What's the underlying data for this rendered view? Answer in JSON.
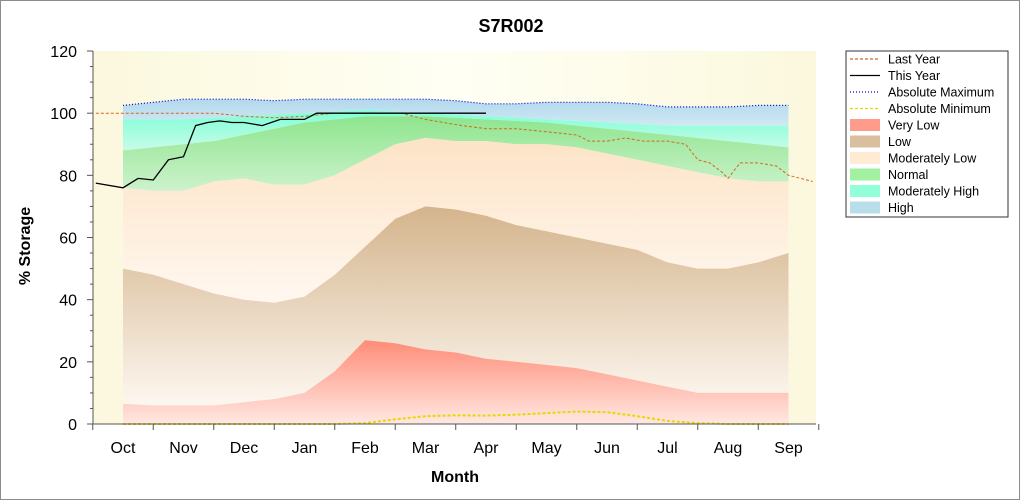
{
  "chart_data": {
    "type": "area",
    "title": "S7R002",
    "xlabel": "Month",
    "ylabel": "% Storage",
    "ylim": [
      0,
      120
    ],
    "yticks": [
      0,
      20,
      40,
      60,
      80,
      100,
      120
    ],
    "categories": [
      "Oct",
      "Nov",
      "Dec",
      "Jan",
      "Feb",
      "Mar",
      "Apr",
      "May",
      "Jun",
      "Jul",
      "Aug",
      "Sep"
    ],
    "grid": false,
    "legend_position": "right",
    "band_boundaries": {
      "x": [
        0,
        0.5,
        1,
        1.5,
        2,
        2.5,
        3,
        3.5,
        4,
        4.5,
        5,
        5.5,
        6,
        6.5,
        7,
        7.5,
        8,
        8.5,
        9,
        9.5,
        10,
        10.5,
        11
      ],
      "very_low_top": [
        6.5,
        6,
        6,
        6,
        7,
        8,
        10,
        17,
        27,
        26,
        24,
        23,
        21,
        20,
        19,
        18,
        16,
        14,
        12,
        10,
        10,
        10,
        10
      ],
      "low_top": [
        50,
        48,
        45,
        42,
        40,
        39,
        41,
        48,
        57,
        66,
        70,
        69,
        67,
        64,
        62,
        60,
        58,
        56,
        52,
        50,
        50,
        52,
        55
      ],
      "moderately_low_top": [
        76,
        75,
        75,
        78,
        79,
        77,
        77,
        80,
        85,
        90,
        92,
        91,
        91,
        90,
        90,
        89,
        87,
        85,
        83,
        81,
        79,
        78,
        78
      ],
      "normal_top": [
        88,
        89,
        90,
        91,
        93,
        95,
        97,
        98,
        99,
        99,
        99,
        98.5,
        98,
        97.5,
        97,
        96,
        95,
        94,
        93,
        92,
        91,
        90,
        89
      ],
      "moderately_high_top": [
        98,
        98,
        98,
        98.5,
        99,
        99.5,
        100,
        100.5,
        101,
        100.5,
        100,
        99.5,
        99,
        98.5,
        98,
        97.5,
        97,
        96.5,
        96,
        96,
        96,
        96,
        96
      ],
      "high_top": [
        102.5,
        103.5,
        104.5,
        104.5,
        104.5,
        104,
        104.5,
        104.5,
        104.5,
        104.5,
        104.5,
        104,
        103,
        103,
        103.5,
        103.5,
        103.5,
        103,
        102,
        102,
        102,
        102.5,
        102.5
      ]
    },
    "series": [
      {
        "name": "Last Year",
        "color": "#d2691e",
        "x": [
          -0.45,
          0,
          0.5,
          1,
          1.5,
          2,
          2.5,
          3,
          3.5,
          4,
          4.3,
          4.6,
          5,
          5.3,
          5.6,
          6,
          6.5,
          7,
          7.5,
          7.7,
          8,
          8.3,
          8.6,
          9,
          9.3,
          9.5,
          9.7,
          9.9,
          10,
          10.2,
          10.5,
          10.8,
          11,
          11.4
        ],
        "y": [
          100,
          100,
          100,
          100,
          100,
          99,
          98.5,
          99,
          100,
          100,
          100,
          100,
          98,
          97,
          96,
          95,
          95,
          94,
          93,
          91,
          91,
          92,
          91,
          91,
          90,
          85,
          84,
          81,
          79,
          84,
          84,
          83,
          80,
          78
        ]
      },
      {
        "name": "This Year",
        "color": "#000000",
        "x": [
          -0.45,
          0,
          0.25,
          0.5,
          0.75,
          1,
          1.2,
          1.4,
          1.6,
          1.8,
          2,
          2.3,
          2.6,
          3,
          3.2,
          3.4,
          3.6,
          3.8,
          4,
          4.2,
          4.5,
          5,
          5.5,
          6
        ],
        "y": [
          77.5,
          76,
          79,
          78.5,
          85,
          86,
          96,
          97,
          97.5,
          97,
          97,
          96,
          98,
          98,
          100,
          100,
          100,
          100,
          100,
          100,
          100,
          100,
          100,
          100
        ]
      },
      {
        "name": "Absolute Maximum",
        "color": "#0000cc",
        "x": [
          0,
          0.5,
          1,
          1.5,
          2,
          2.5,
          3,
          3.5,
          4,
          4.5,
          5,
          5.5,
          6,
          6.5,
          7,
          7.5,
          8,
          8.5,
          9,
          9.5,
          10,
          10.5,
          11
        ],
        "y": [
          102.5,
          103.5,
          104.5,
          104.5,
          104.5,
          104,
          104.5,
          104.5,
          104.5,
          104.5,
          104.5,
          104,
          103,
          103,
          103.5,
          103.5,
          103.5,
          103,
          102,
          102,
          102,
          102.5,
          102.5
        ]
      },
      {
        "name": "Absolute Minimum",
        "color": "#e6d800",
        "x": [
          0,
          1,
          2,
          3,
          3.5,
          4,
          4.5,
          5,
          5.5,
          6,
          6.5,
          7,
          7.5,
          8,
          8.5,
          9,
          9.5,
          10,
          11
        ],
        "y": [
          0,
          0,
          0,
          0,
          0,
          0.3,
          1.5,
          2.5,
          2.8,
          2.7,
          3,
          3.5,
          4,
          3.8,
          2.5,
          1,
          0.3,
          0,
          0
        ]
      }
    ],
    "legend": [
      {
        "label": "Last Year",
        "kind": "line",
        "color": "#d2691e",
        "dash": "3,2"
      },
      {
        "label": "This Year",
        "kind": "line",
        "color": "#000000",
        "dash": ""
      },
      {
        "label": "Absolute Maximum",
        "kind": "line",
        "color": "#0000cc",
        "dash": "1,2"
      },
      {
        "label": "Absolute Minimum",
        "kind": "line",
        "color": "#e6d800",
        "dash": "3,2"
      },
      {
        "label": "Very Low",
        "kind": "fill",
        "color": "#ff8a75"
      },
      {
        "label": "Low",
        "kind": "fill",
        "color": "#d2b48c"
      },
      {
        "label": "Moderately Low",
        "kind": "fill",
        "color": "#ffe6cc"
      },
      {
        "label": "Normal",
        "kind": "fill",
        "color": "#90ee90"
      },
      {
        "label": "Moderately High",
        "kind": "fill",
        "color": "#7fffd4"
      },
      {
        "label": "High",
        "kind": "fill",
        "color": "#add8e6"
      }
    ]
  }
}
